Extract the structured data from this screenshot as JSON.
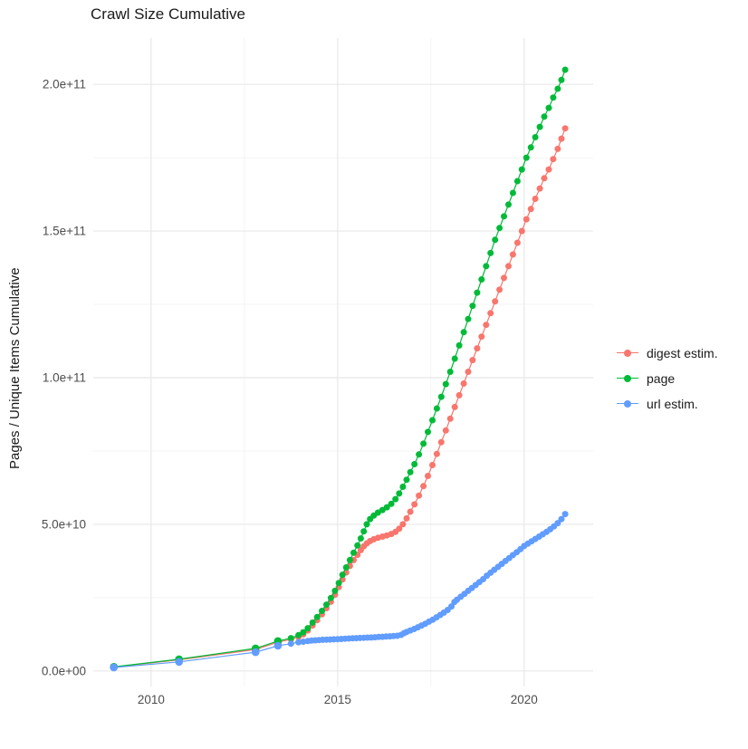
{
  "title": "Crawl Size Cumulative",
  "legend": {
    "items": [
      {
        "label": "digest estim.",
        "color": "#F8766D"
      },
      {
        "label": "page",
        "color": "#00BA38"
      },
      {
        "label": "url estim.",
        "color": "#619CFF"
      }
    ]
  },
  "chart_data": {
    "type": "line",
    "title": "Crawl Size Cumulative",
    "xlabel": "",
    "ylabel": "Pages / Unique Items Cumulative",
    "legend_position": "right",
    "grid": {
      "major_color": "#e8e8e8",
      "minor_color": "#f4f4f4"
    },
    "x_axis": {
      "lim": [
        2008.45,
        2021.85
      ],
      "major_ticks": [
        {
          "label": "2010",
          "value": 2010
        },
        {
          "label": "2015",
          "value": 2015
        },
        {
          "label": "2020",
          "value": 2020
        }
      ],
      "minor_ticks": [
        2012.5,
        2017.5
      ]
    },
    "y_axis": {
      "note": "values in units of 1e9 pages",
      "lim": [
        -5.3,
        215.8
      ],
      "major_ticks": [
        {
          "label": "0.0e+00",
          "value": 0
        },
        {
          "label": "5.0e+10",
          "value": 50
        },
        {
          "label": "1.0e+11",
          "value": 100
        },
        {
          "label": "1.5e+11",
          "value": 150
        },
        {
          "label": "2.0e+11",
          "value": 200
        }
      ],
      "minor_ticks": [
        25,
        75,
        125,
        175
      ]
    },
    "series": [
      {
        "name": "digest estim.",
        "color": "#F8766D",
        "points": [
          [
            2009.0,
            1.3
          ],
          [
            2010.75,
            3.8
          ],
          [
            2012.8,
            7.3
          ],
          [
            2013.4,
            9.8
          ],
          [
            2013.75,
            10.8
          ],
          [
            2013.95,
            11.6
          ],
          [
            2014.08,
            12.5
          ],
          [
            2014.2,
            13.8
          ],
          [
            2014.33,
            15.5
          ],
          [
            2014.45,
            17.3
          ],
          [
            2014.58,
            19.3
          ],
          [
            2014.7,
            21.4
          ],
          [
            2014.82,
            23.6
          ],
          [
            2014.93,
            26.0
          ],
          [
            2015.03,
            28.6
          ],
          [
            2015.13,
            31.2
          ],
          [
            2015.23,
            33.6
          ],
          [
            2015.33,
            35.8
          ],
          [
            2015.43,
            37.8
          ],
          [
            2015.53,
            39.6
          ],
          [
            2015.62,
            41.2
          ],
          [
            2015.7,
            42.5
          ],
          [
            2015.78,
            43.5
          ],
          [
            2015.87,
            44.3
          ],
          [
            2015.97,
            44.9
          ],
          [
            2016.08,
            45.4
          ],
          [
            2016.2,
            45.8
          ],
          [
            2016.32,
            46.2
          ],
          [
            2016.44,
            46.7
          ],
          [
            2016.55,
            47.4
          ],
          [
            2016.65,
            48.5
          ],
          [
            2016.75,
            50.0
          ],
          [
            2016.85,
            52.0
          ],
          [
            2016.95,
            54.3
          ],
          [
            2017.06,
            56.8
          ],
          [
            2017.18,
            59.8
          ],
          [
            2017.3,
            63.0
          ],
          [
            2017.42,
            66.5
          ],
          [
            2017.54,
            70.2
          ],
          [
            2017.66,
            74.0
          ],
          [
            2017.78,
            78.0
          ],
          [
            2017.9,
            82.0
          ],
          [
            2018.02,
            86.0
          ],
          [
            2018.14,
            90.0
          ],
          [
            2018.26,
            94.0
          ],
          [
            2018.38,
            98.0
          ],
          [
            2018.5,
            102.0
          ],
          [
            2018.62,
            106.0
          ],
          [
            2018.74,
            110.0
          ],
          [
            2018.86,
            114.0
          ],
          [
            2018.98,
            118.0
          ],
          [
            2019.1,
            122.0
          ],
          [
            2019.22,
            126.0
          ],
          [
            2019.34,
            130.0
          ],
          [
            2019.46,
            134.0
          ],
          [
            2019.58,
            138.0
          ],
          [
            2019.7,
            142.0
          ],
          [
            2019.82,
            146.0
          ],
          [
            2019.94,
            150.0
          ],
          [
            2020.06,
            154.0
          ],
          [
            2020.18,
            157.5
          ],
          [
            2020.3,
            161.0
          ],
          [
            2020.42,
            164.5
          ],
          [
            2020.54,
            168.0
          ],
          [
            2020.66,
            171.0
          ],
          [
            2020.78,
            174.5
          ],
          [
            2020.9,
            178.0
          ],
          [
            2021.0,
            181.5
          ],
          [
            2021.1,
            185.0
          ]
        ]
      },
      {
        "name": "page",
        "color": "#00BA38",
        "points": [
          [
            2009.0,
            1.4
          ],
          [
            2010.75,
            4.0
          ],
          [
            2012.8,
            7.7
          ],
          [
            2013.4,
            10.2
          ],
          [
            2013.75,
            11.2
          ],
          [
            2013.95,
            12.2
          ],
          [
            2014.08,
            13.2
          ],
          [
            2014.2,
            14.6
          ],
          [
            2014.33,
            16.5
          ],
          [
            2014.45,
            18.4
          ],
          [
            2014.58,
            20.5
          ],
          [
            2014.7,
            22.6
          ],
          [
            2014.82,
            24.9
          ],
          [
            2014.93,
            27.3
          ],
          [
            2015.03,
            30.0
          ],
          [
            2015.13,
            32.8
          ],
          [
            2015.23,
            35.3
          ],
          [
            2015.33,
            37.8
          ],
          [
            2015.43,
            40.3
          ],
          [
            2015.53,
            42.8
          ],
          [
            2015.62,
            45.2
          ],
          [
            2015.7,
            47.6
          ],
          [
            2015.78,
            50.0
          ],
          [
            2015.87,
            51.8
          ],
          [
            2015.97,
            53.0
          ],
          [
            2016.08,
            54.0
          ],
          [
            2016.2,
            54.9
          ],
          [
            2016.32,
            55.8
          ],
          [
            2016.44,
            57.0
          ],
          [
            2016.55,
            58.6
          ],
          [
            2016.65,
            60.5
          ],
          [
            2016.75,
            62.8
          ],
          [
            2016.85,
            65.2
          ],
          [
            2016.95,
            67.8
          ],
          [
            2017.06,
            70.5
          ],
          [
            2017.18,
            73.8
          ],
          [
            2017.3,
            77.5
          ],
          [
            2017.42,
            81.5
          ],
          [
            2017.54,
            85.5
          ],
          [
            2017.66,
            89.5
          ],
          [
            2017.78,
            93.5
          ],
          [
            2017.9,
            97.8
          ],
          [
            2018.02,
            102.0
          ],
          [
            2018.14,
            106.5
          ],
          [
            2018.26,
            111.0
          ],
          [
            2018.38,
            115.5
          ],
          [
            2018.5,
            120.0
          ],
          [
            2018.62,
            124.5
          ],
          [
            2018.74,
            129.0
          ],
          [
            2018.86,
            133.5
          ],
          [
            2018.98,
            138.0
          ],
          [
            2019.1,
            142.5
          ],
          [
            2019.22,
            147.0
          ],
          [
            2019.34,
            151.0
          ],
          [
            2019.46,
            155.0
          ],
          [
            2019.58,
            159.0
          ],
          [
            2019.7,
            163.0
          ],
          [
            2019.82,
            167.0
          ],
          [
            2019.94,
            171.0
          ],
          [
            2020.06,
            175.0
          ],
          [
            2020.18,
            178.5
          ],
          [
            2020.3,
            182.0
          ],
          [
            2020.42,
            185.5
          ],
          [
            2020.54,
            189.0
          ],
          [
            2020.66,
            192.0
          ],
          [
            2020.78,
            195.5
          ],
          [
            2020.9,
            198.5
          ],
          [
            2021.0,
            201.5
          ],
          [
            2021.1,
            205.0
          ]
        ]
      },
      {
        "name": "url estim.",
        "color": "#619CFF",
        "points": [
          [
            2009.0,
            1.2
          ],
          [
            2010.75,
            3.1
          ],
          [
            2012.8,
            6.4
          ],
          [
            2013.4,
            8.6
          ],
          [
            2013.75,
            9.3
          ],
          [
            2013.95,
            9.8
          ],
          [
            2014.08,
            10.0
          ],
          [
            2014.2,
            10.2
          ],
          [
            2014.3,
            10.35
          ],
          [
            2014.4,
            10.45
          ],
          [
            2014.5,
            10.55
          ],
          [
            2014.6,
            10.62
          ],
          [
            2014.7,
            10.68
          ],
          [
            2014.8,
            10.73
          ],
          [
            2014.9,
            10.78
          ],
          [
            2015.0,
            10.85
          ],
          [
            2015.1,
            10.92
          ],
          [
            2015.2,
            11.0
          ],
          [
            2015.3,
            11.06
          ],
          [
            2015.4,
            11.12
          ],
          [
            2015.5,
            11.18
          ],
          [
            2015.6,
            11.24
          ],
          [
            2015.7,
            11.3
          ],
          [
            2015.8,
            11.36
          ],
          [
            2015.9,
            11.42
          ],
          [
            2016.0,
            11.5
          ],
          [
            2016.1,
            11.58
          ],
          [
            2016.2,
            11.66
          ],
          [
            2016.3,
            11.74
          ],
          [
            2016.4,
            11.82
          ],
          [
            2016.5,
            11.9
          ],
          [
            2016.6,
            12.0
          ],
          [
            2016.7,
            12.3
          ],
          [
            2016.78,
            12.9
          ],
          [
            2016.85,
            13.3
          ],
          [
            2016.95,
            13.8
          ],
          [
            2017.05,
            14.3
          ],
          [
            2017.15,
            14.9
          ],
          [
            2017.25,
            15.5
          ],
          [
            2017.35,
            16.1
          ],
          [
            2017.45,
            16.8
          ],
          [
            2017.55,
            17.5
          ],
          [
            2017.65,
            18.3
          ],
          [
            2017.75,
            19.1
          ],
          [
            2017.85,
            19.9
          ],
          [
            2017.95,
            20.8
          ],
          [
            2018.05,
            22.0
          ],
          [
            2018.13,
            23.5
          ],
          [
            2018.2,
            24.3
          ],
          [
            2018.3,
            25.3
          ],
          [
            2018.4,
            26.3
          ],
          [
            2018.5,
            27.3
          ],
          [
            2018.6,
            28.3
          ],
          [
            2018.7,
            29.3
          ],
          [
            2018.8,
            30.3
          ],
          [
            2018.9,
            31.3
          ],
          [
            2019.0,
            32.5
          ],
          [
            2019.1,
            33.5
          ],
          [
            2019.2,
            34.5
          ],
          [
            2019.3,
            35.5
          ],
          [
            2019.4,
            36.5
          ],
          [
            2019.5,
            37.5
          ],
          [
            2019.6,
            38.5
          ],
          [
            2019.7,
            39.5
          ],
          [
            2019.8,
            40.5
          ],
          [
            2019.9,
            41.5
          ],
          [
            2020.0,
            42.6
          ],
          [
            2020.1,
            43.4
          ],
          [
            2020.2,
            44.2
          ],
          [
            2020.3,
            45.0
          ],
          [
            2020.4,
            45.8
          ],
          [
            2020.5,
            46.6
          ],
          [
            2020.6,
            47.4
          ],
          [
            2020.7,
            48.3
          ],
          [
            2020.8,
            49.3
          ],
          [
            2020.9,
            50.4
          ],
          [
            2021.0,
            51.8
          ],
          [
            2021.1,
            53.5
          ]
        ]
      }
    ]
  }
}
